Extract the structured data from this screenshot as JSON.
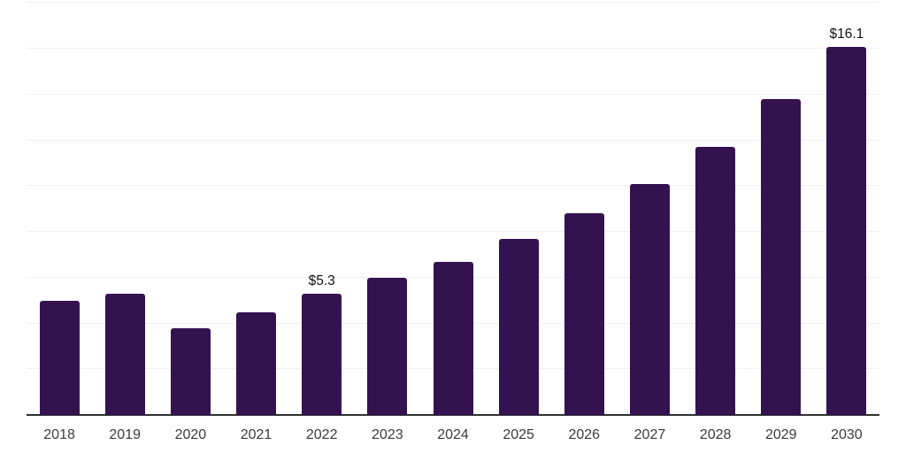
{
  "chart_data": {
    "type": "bar",
    "title": "",
    "xlabel": "",
    "ylabel": "",
    "categories": [
      "2018",
      "2019",
      "2020",
      "2021",
      "2022",
      "2023",
      "2024",
      "2025",
      "2026",
      "2027",
      "2028",
      "2029",
      "2030"
    ],
    "values": [
      5.0,
      5.3,
      3.8,
      4.5,
      5.3,
      6.0,
      6.7,
      7.7,
      8.8,
      10.1,
      11.7,
      13.8,
      16.1
    ],
    "data_labels": [
      "",
      "",
      "",
      "",
      "$5.3",
      "",
      "",
      "",
      "",
      "",
      "",
      "",
      "$16.1"
    ],
    "ylim": [
      0,
      18
    ],
    "grid_step": 2,
    "grid": true,
    "legend": false,
    "y_axis_labels_visible": false,
    "colors": {
      "bar": "#341250",
      "gridline": "#f0f0f0",
      "axis_line": "#303030",
      "tick_label": "#3b3b3b",
      "data_label": "#111111",
      "background": "#ffffff"
    }
  }
}
